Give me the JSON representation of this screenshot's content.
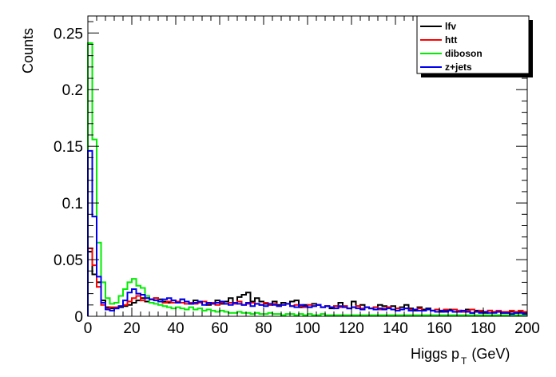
{
  "chart_data": {
    "type": "line",
    "style": "step-histogram",
    "xlabel": "Higgs p_T (GeV)",
    "xlabel_main": "Higgs p",
    "xlabel_sub": "T",
    "xlabel_unit": "(GeV)",
    "ylabel": "Counts",
    "xlim": [
      0,
      200
    ],
    "ylim": [
      0,
      0.265
    ],
    "x_ticks": [
      0,
      20,
      40,
      60,
      80,
      100,
      120,
      140,
      160,
      180,
      200
    ],
    "x_tick_labels": [
      "0",
      "20",
      "40",
      "60",
      "80",
      "100",
      "120",
      "140",
      "160",
      "180",
      "200"
    ],
    "y_ticks": [
      0,
      0.05,
      0.1,
      0.15,
      0.2,
      0.25
    ],
    "y_tick_labels": [
      "0",
      "0.05",
      "0.1",
      "0.15",
      "0.2",
      "0.25"
    ],
    "bin_width": 2,
    "grid": false,
    "legend_position": "top-right",
    "series": [
      {
        "name": "lfv",
        "color": "#000000",
        "values": [
          0.057,
          0.037,
          0.03,
          0.014,
          0.008,
          0.007,
          0.007,
          0.008,
          0.009,
          0.01,
          0.012,
          0.014,
          0.016,
          0.013,
          0.015,
          0.016,
          0.015,
          0.013,
          0.012,
          0.014,
          0.012,
          0.015,
          0.013,
          0.011,
          0.014,
          0.012,
          0.013,
          0.01,
          0.012,
          0.014,
          0.011,
          0.013,
          0.016,
          0.012,
          0.017,
          0.019,
          0.021,
          0.013,
          0.016,
          0.013,
          0.011,
          0.01,
          0.013,
          0.01,
          0.012,
          0.011,
          0.013,
          0.014,
          0.008,
          0.01,
          0.008,
          0.011,
          0.01,
          0.008,
          0.009,
          0.007,
          0.009,
          0.012,
          0.009,
          0.007,
          0.013,
          0.009,
          0.01,
          0.008,
          0.007,
          0.008,
          0.01,
          0.009,
          0.008,
          0.009,
          0.007,
          0.008,
          0.01,
          0.007,
          0.005,
          0.008,
          0.006,
          0.007,
          0.005,
          0.006,
          0.004,
          0.005,
          0.006,
          0.004,
          0.005,
          0.004,
          0.006,
          0.003,
          0.005,
          0.004,
          0.003,
          0.005,
          0.004,
          0.004,
          0.003,
          0.003,
          0.004,
          0.003,
          0.004,
          0.003
        ]
      },
      {
        "name": "htt",
        "color": "#ff0000",
        "values": [
          0.06,
          0.045,
          0.026,
          0.01,
          0.007,
          0.008,
          0.008,
          0.009,
          0.01,
          0.013,
          0.016,
          0.018,
          0.014,
          0.016,
          0.015,
          0.016,
          0.013,
          0.012,
          0.013,
          0.012,
          0.013,
          0.012,
          0.011,
          0.012,
          0.011,
          0.012,
          0.013,
          0.011,
          0.012,
          0.01,
          0.012,
          0.011,
          0.012,
          0.011,
          0.013,
          0.01,
          0.011,
          0.012,
          0.011,
          0.01,
          0.012,
          0.01,
          0.011,
          0.009,
          0.01,
          0.011,
          0.009,
          0.01,
          0.009,
          0.008,
          0.01,
          0.009,
          0.01,
          0.008,
          0.009,
          0.008,
          0.009,
          0.008,
          0.009,
          0.007,
          0.008,
          0.009,
          0.007,
          0.008,
          0.007,
          0.008,
          0.006,
          0.007,
          0.008,
          0.006,
          0.007,
          0.006,
          0.007,
          0.006,
          0.006,
          0.007,
          0.005,
          0.006,
          0.005,
          0.006,
          0.005,
          0.006,
          0.005,
          0.006,
          0.005,
          0.004,
          0.005,
          0.006,
          0.004,
          0.005,
          0.004,
          0.005,
          0.004,
          0.005,
          0.004,
          0.004,
          0.005,
          0.004,
          0.005,
          0.004
        ]
      },
      {
        "name": "diboson",
        "color": "#00ee00",
        "values": [
          0.241,
          0.156,
          0.065,
          0.03,
          0.016,
          0.011,
          0.012,
          0.018,
          0.024,
          0.03,
          0.033,
          0.027,
          0.025,
          0.018,
          0.012,
          0.011,
          0.01,
          0.009,
          0.008,
          0.007,
          0.008,
          0.007,
          0.006,
          0.008,
          0.006,
          0.007,
          0.005,
          0.006,
          0.005,
          0.004,
          0.005,
          0.004,
          0.003,
          0.003,
          0.004,
          0.003,
          0.003,
          0.002,
          0.003,
          0.002,
          0.002,
          0.003,
          0.002,
          0.002,
          0.001,
          0.002,
          0.002,
          0.001,
          0.002,
          0.001,
          0.002,
          0.001,
          0.001,
          0.002,
          0.001,
          0.001,
          0.001,
          0.001,
          0.001,
          0.001,
          0.001,
          0.001,
          0.001,
          0.001,
          0.001,
          0.001,
          0.001,
          0.001,
          0.001,
          0.001,
          0.001,
          0.001,
          0.001,
          0.001,
          0.001,
          0.001,
          0.001,
          0.001,
          0.001,
          0.001,
          0.001,
          0.001,
          0.001,
          0.001,
          0.001,
          0.001,
          0.001,
          0.001,
          0.001,
          0.001,
          0.001,
          0.001,
          0.001,
          0.001,
          0.001,
          0.001,
          0.001,
          0.001,
          0.001,
          0.001
        ]
      },
      {
        "name": "z+jets",
        "color": "#0000ee",
        "values": [
          0.146,
          0.088,
          0.035,
          0.012,
          0.006,
          0.005,
          0.007,
          0.009,
          0.014,
          0.021,
          0.024,
          0.02,
          0.019,
          0.016,
          0.015,
          0.014,
          0.013,
          0.015,
          0.016,
          0.014,
          0.012,
          0.015,
          0.013,
          0.011,
          0.012,
          0.013,
          0.01,
          0.012,
          0.011,
          0.012,
          0.013,
          0.011,
          0.01,
          0.012,
          0.011,
          0.01,
          0.012,
          0.009,
          0.011,
          0.01,
          0.009,
          0.011,
          0.01,
          0.009,
          0.01,
          0.011,
          0.009,
          0.008,
          0.01,
          0.009,
          0.008,
          0.009,
          0.01,
          0.008,
          0.009,
          0.008,
          0.007,
          0.009,
          0.008,
          0.007,
          0.008,
          0.007,
          0.006,
          0.008,
          0.007,
          0.006,
          0.007,
          0.006,
          0.007,
          0.006,
          0.005,
          0.006,
          0.007,
          0.005,
          0.006,
          0.005,
          0.005,
          0.006,
          0.005,
          0.004,
          0.005,
          0.004,
          0.005,
          0.004,
          0.004,
          0.005,
          0.004,
          0.003,
          0.004,
          0.003,
          0.004,
          0.003,
          0.003,
          0.004,
          0.003,
          0.003,
          0.002,
          0.003,
          0.003,
          0.002
        ]
      }
    ]
  }
}
